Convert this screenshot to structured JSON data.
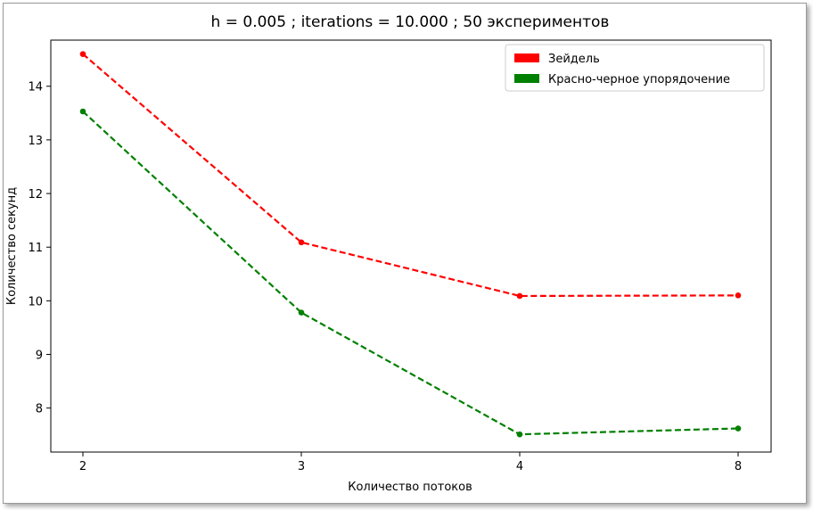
{
  "chart_data": {
    "type": "line",
    "title": "h = 0.005 ; iterations = 10.000 ; 50 экспериментов",
    "xlabel": "Количество потоков",
    "ylabel": "Количество секунд",
    "categories": [
      "2",
      "3",
      "4",
      "8"
    ],
    "yticks": [
      8,
      9,
      10,
      11,
      12,
      13,
      14
    ],
    "ylim": [
      7.18,
      14.86
    ],
    "grid": false,
    "legend_position": "top-right",
    "series": [
      {
        "name": "Зейдель",
        "color": "#ff0000",
        "values": [
          14.6,
          11.09,
          10.09,
          10.1
        ]
      },
      {
        "name": "Красно-черное упорядочение",
        "color": "#008000",
        "values": [
          13.53,
          9.78,
          7.51,
          7.62
        ]
      }
    ]
  }
}
